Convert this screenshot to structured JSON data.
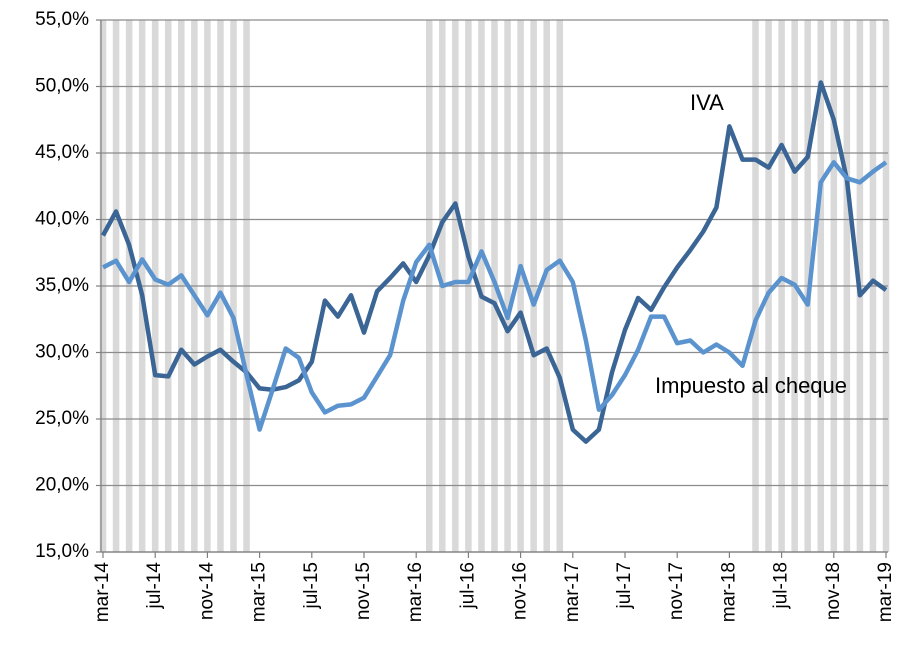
{
  "chart_data": {
    "type": "line",
    "categories": [
      "mar-14",
      null,
      null,
      null,
      "jul-14",
      null,
      null,
      null,
      "nov-14",
      null,
      null,
      null,
      "mar-15",
      null,
      null,
      null,
      "jul-15",
      null,
      null,
      null,
      "nov-15",
      null,
      null,
      null,
      "mar-16",
      null,
      null,
      null,
      "jul-16",
      null,
      null,
      null,
      "nov-16",
      null,
      null,
      null,
      "mar-17",
      null,
      null,
      null,
      "jul-17",
      null,
      null,
      null,
      "nov-17",
      null,
      null,
      null,
      "mar-18",
      null,
      null,
      null,
      "jul-18",
      null,
      null,
      null,
      "nov-18",
      null,
      null,
      null,
      "mar-19"
    ],
    "series": [
      {
        "name": "IVA",
        "color": "#3a6595",
        "values": [
          38.8,
          40.6,
          38.1,
          34.3,
          28.3,
          28.2,
          30.2,
          29.1,
          29.7,
          30.2,
          29.3,
          28.5,
          27.3,
          27.2,
          27.4,
          27.9,
          29.3,
          33.9,
          32.7,
          34.3,
          31.5,
          34.6,
          35.6,
          36.7,
          35.3,
          37.3,
          39.8,
          41.2,
          37.2,
          34.2,
          33.7,
          31.6,
          33.0,
          29.8,
          30.3,
          28.1,
          24.2,
          23.3,
          24.2,
          28.5,
          31.7,
          34.1,
          33.2,
          34.9,
          36.4,
          37.7,
          39.1,
          40.9,
          47.0,
          44.5,
          44.5,
          43.9,
          45.6,
          43.6,
          44.7,
          50.3,
          47.5,
          43.0,
          34.3,
          35.4,
          34.7
        ]
      },
      {
        "name": "Impuesto al cheque",
        "color": "#5b93cf",
        "values": [
          36.4,
          36.9,
          35.3,
          37.0,
          35.5,
          35.1,
          35.8,
          34.3,
          32.8,
          34.5,
          32.6,
          28.3,
          24.2,
          27.2,
          30.3,
          29.6,
          27.0,
          25.5,
          26.0,
          26.1,
          26.6,
          28.2,
          29.8,
          33.9,
          36.8,
          38.1,
          35.0,
          35.3,
          35.3,
          37.6,
          35.3,
          32.6,
          36.5,
          33.6,
          36.2,
          36.9,
          35.3,
          30.9,
          25.7,
          26.8,
          28.3,
          30.2,
          32.7,
          32.7,
          30.7,
          30.9,
          30.0,
          30.6,
          30.0,
          29.0,
          32.4,
          34.5,
          35.6,
          35.1,
          33.6,
          42.8,
          44.3,
          43.1,
          42.8,
          43.6,
          44.3
        ]
      }
    ],
    "ylim": [
      15,
      55
    ],
    "yticks": [
      {
        "value": 15,
        "label": "15,0%"
      },
      {
        "value": 20,
        "label": "20,0%"
      },
      {
        "value": 25,
        "label": "25,0%"
      },
      {
        "value": 30,
        "label": "30,0%"
      },
      {
        "value": 35,
        "label": "35,0%"
      },
      {
        "value": 40,
        "label": "40,0%"
      },
      {
        "value": 45,
        "label": "45,0%"
      },
      {
        "value": 50,
        "label": "50,0%"
      },
      {
        "value": 55,
        "label": "55,0%"
      }
    ],
    "grid": true,
    "shaded_periods": [
      [
        0,
        11
      ],
      [
        25,
        35
      ],
      [
        50,
        60
      ]
    ],
    "shade_color": "#d9d9d9"
  }
}
